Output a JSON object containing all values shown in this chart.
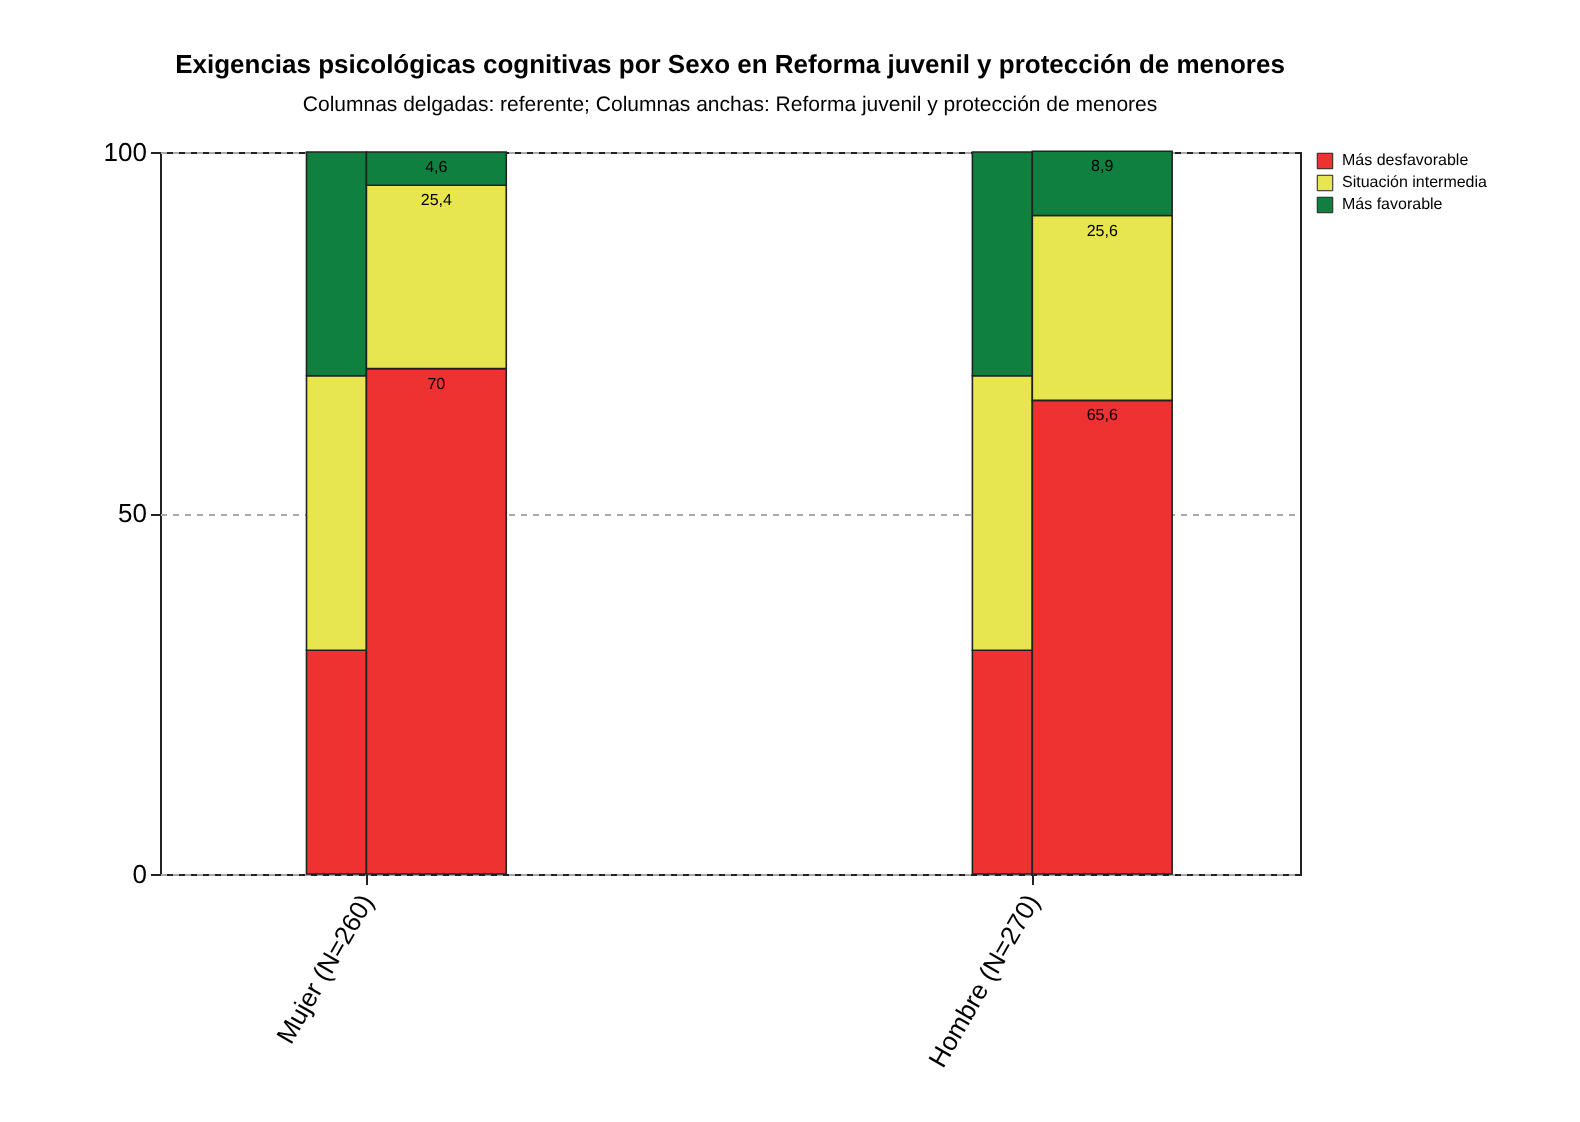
{
  "chart_data": {
    "type": "bar",
    "title": "Exigencias psicológicas cognitivas por Sexo en Reforma juvenil y protección de menores",
    "subtitle": "Columnas delgadas: referente; Columnas anchas: Reforma juvenil y protección de menores",
    "categories": [
      "Mujer (N=260)",
      "Hombre (N=270)"
    ],
    "series": [
      {
        "color": "#ee3131",
        "values": [
          31,
          31
        ],
        "base": [
          0,
          0
        ]
      },
      {
        "color": "#e8e650",
        "values": [
          38,
          38
        ],
        "base": [
          31,
          31
        ]
      },
      {
        "color": "#0f8040",
        "values": [
          31,
          31
        ],
        "base": [
          69,
          69
        ]
      },
      {
        "name": "Más  desfavorable",
        "color": "#ee3131",
        "values": [
          70,
          65.6
        ],
        "base": [
          0,
          0
        ],
        "value_labels": [
          "70",
          "65,6"
        ]
      },
      {
        "name": "Situación intermedia",
        "color": "#e8e650",
        "values": [
          25.4,
          25.6
        ],
        "base": [
          70,
          65.6
        ],
        "value_labels": [
          "25,4",
          "25,6"
        ]
      },
      {
        "name": "Más favorable",
        "color": "#0f8040",
        "values": [
          4.6,
          8.9
        ],
        "base": [
          95.4,
          91.2
        ],
        "value_labels": [
          "4,6",
          "8,9"
        ]
      }
    ],
    "ylim": [
      0,
      100
    ],
    "yticks": [
      0,
      50,
      100
    ],
    "grid": true,
    "legend": "top right"
  }
}
